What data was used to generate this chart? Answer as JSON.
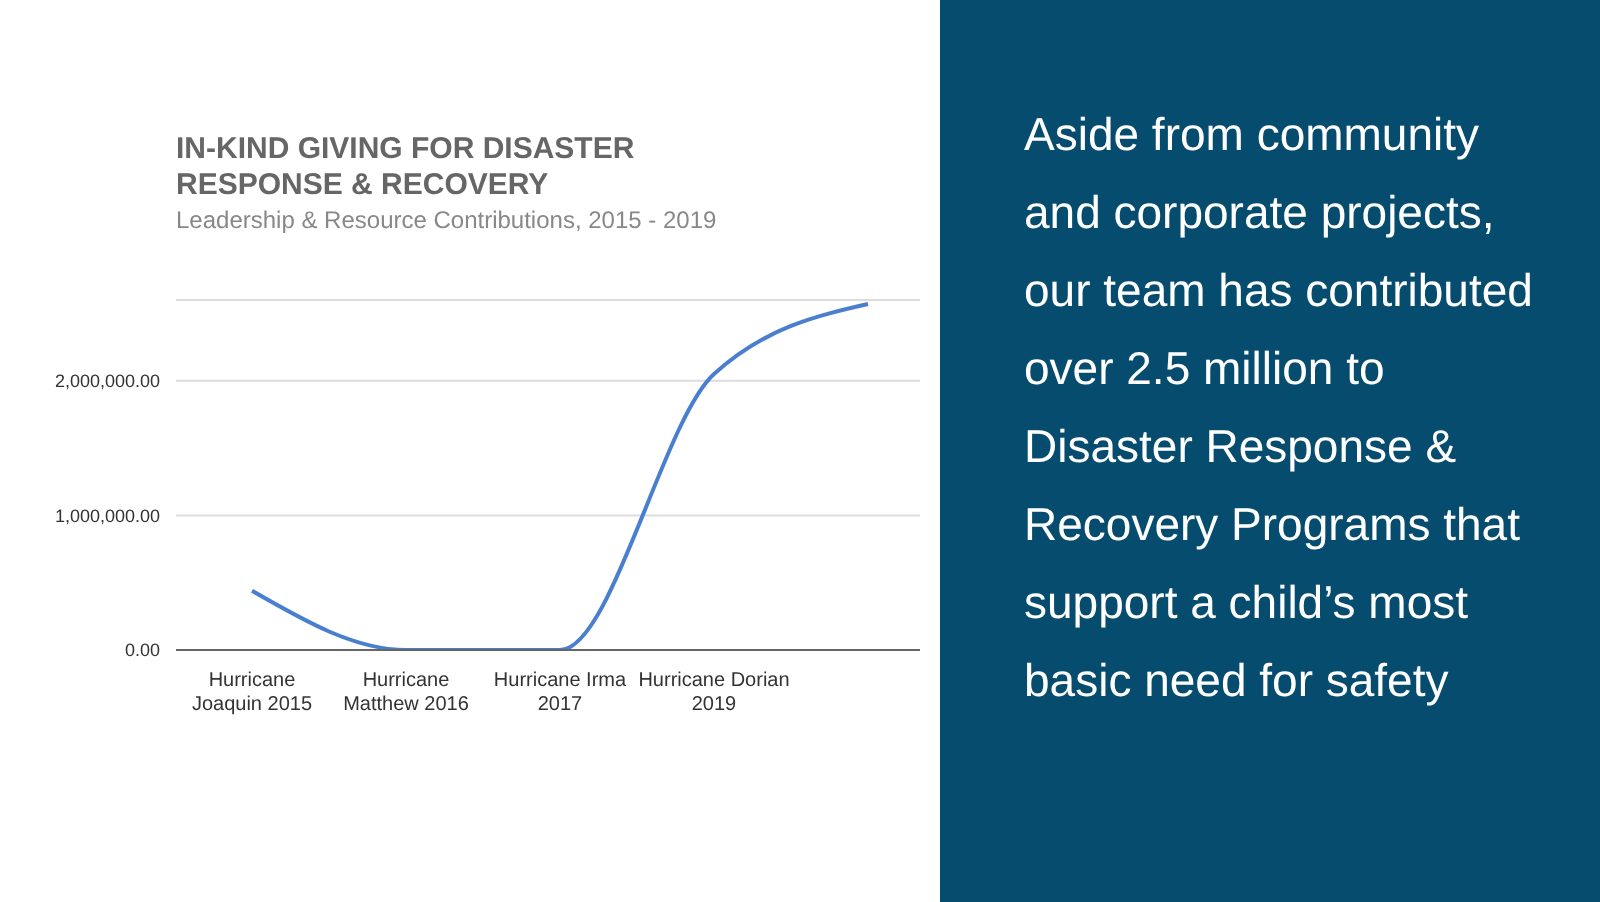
{
  "chart_data": {
    "type": "line",
    "title": "IN-KIND GIVING FOR DISASTER RESPONSE & RECOVERY",
    "subtitle": "Leadership & Resource Contributions, 2015 - 2019",
    "categories": [
      "Hurricane Joaquin 2015",
      "Hurricane Matthew 2016",
      "Hurricane Irma 2017",
      "Hurricane Dorian 2019",
      null
    ],
    "series": [
      {
        "color": "#4a7fd0",
        "values": [
          440000,
          0,
          0,
          2050000,
          2570000
        ]
      }
    ],
    "ylim": [
      0,
      2600000
    ],
    "yticks": [
      {
        "value": 0,
        "label": "0.00"
      },
      {
        "value": 1000000,
        "label": "1,000,000.00"
      },
      {
        "value": 2000000,
        "label": "2,000,000.00"
      }
    ],
    "grid": "y",
    "legend": false,
    "marker": "none",
    "line_style": "solid",
    "annotations": [
      "Aside from community and corporate projects, our team has contributed over 2.5 million to Disaster Response & Recovery Programs that support a child’s most basic need for safety"
    ]
  }
}
